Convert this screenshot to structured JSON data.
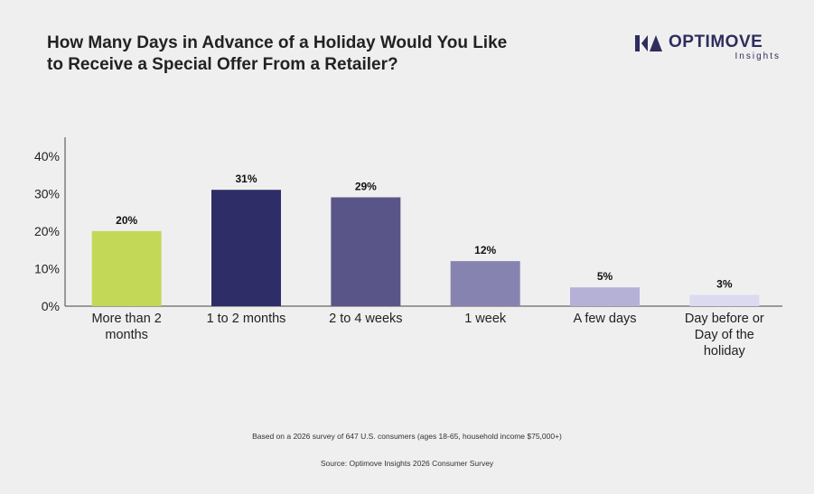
{
  "title_lines": [
    "How Many Days in Advance of a Holiday Would You Like",
    "to Receive a Special Offer From a Retailer?"
  ],
  "logo": {
    "word": "OPTIMOVE",
    "sub": "Insights",
    "color": "#2e2d5e"
  },
  "chart_data": {
    "type": "bar",
    "categories": [
      [
        "More than 2",
        "months"
      ],
      [
        "1 to 2 months"
      ],
      [
        "2 to 4 weeks"
      ],
      [
        "1 week"
      ],
      [
        "A few days"
      ],
      [
        "Day before or",
        "Day of the",
        "holiday"
      ]
    ],
    "values": [
      20,
      31,
      29,
      12,
      5,
      3
    ],
    "value_labels": [
      "20%",
      "31%",
      "29%",
      "12%",
      "5%",
      "3%"
    ],
    "colors": [
      "#c4d858",
      "#2e2d67",
      "#5a5589",
      "#8683b1",
      "#b5b1d6",
      "#dcdaf0"
    ],
    "yticks": [
      "0%",
      "10%",
      "20%",
      "30%",
      "40%"
    ],
    "ylim": [
      0,
      45
    ],
    "grid": false
  },
  "footnote": "Based on a 2026 survey of 647 U.S. consumers (ages 18-65, household income $75,000+)",
  "source": "Source: Optimove Insights 2026 Consumer Survey"
}
